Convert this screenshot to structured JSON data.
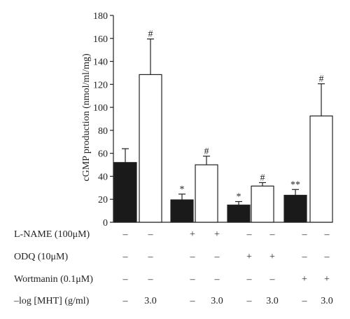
{
  "chart_data": {
    "type": "bar",
    "ylabel": "cGMP production (nmol/ml/mg)",
    "ylim": [
      0,
      180
    ],
    "yticks": [
      0,
      20,
      40,
      60,
      80,
      100,
      120,
      140,
      160,
      180
    ],
    "grid": false,
    "series": [
      {
        "fill": "#1a1a1a",
        "values": [
          52,
          19.5,
          15,
          23.5
        ],
        "errors": [
          12,
          5,
          3,
          5
        ],
        "sig": [
          "",
          "*",
          "*",
          "**"
        ]
      },
      {
        "fill": "#ffffff",
        "values": [
          128.5,
          50,
          31.5,
          92.5
        ],
        "errors": [
          31,
          7.5,
          3,
          28
        ],
        "sig": [
          "#",
          "#",
          "#",
          "#"
        ]
      }
    ],
    "conditions": [
      {
        "label": "L-NAME (100μM)",
        "values": [
          "–",
          "–",
          "+",
          "+",
          "–",
          "–",
          "–",
          "–"
        ]
      },
      {
        "label": "ODQ (10μM)",
        "values": [
          "–",
          "–",
          "–",
          "–",
          "+",
          "+",
          "–",
          "–"
        ]
      },
      {
        "label": "Wortmanin (0.1μM)",
        "values": [
          "–",
          "–",
          "–",
          "–",
          "–",
          "–",
          "+",
          "+"
        ]
      },
      {
        "label": "–log [MHT] (g/ml)",
        "values": [
          "–",
          "3.0",
          "–",
          "3.0",
          "–",
          "3.0",
          "–",
          "3.0"
        ]
      }
    ]
  }
}
